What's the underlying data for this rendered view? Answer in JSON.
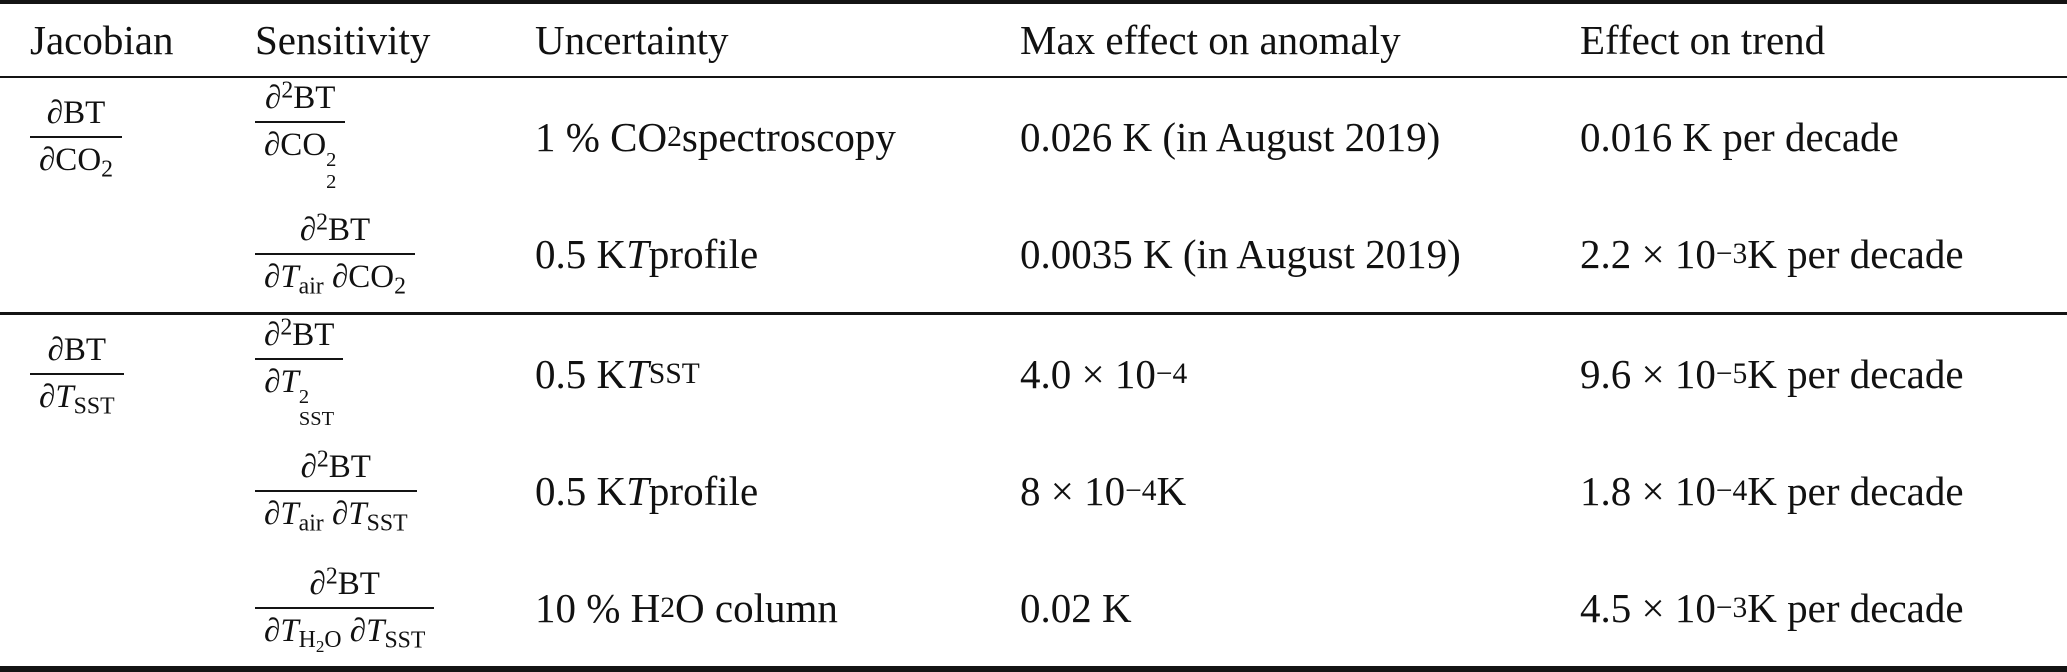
{
  "colors": {
    "background": "#ffffff",
    "text": "#111111",
    "rule": "#141414"
  },
  "table": {
    "headers": {
      "jacobian": "Jacobian",
      "sensitivity": "Sensitivity",
      "uncertainty": "Uncertainty",
      "max_effect": "Max effect on anomaly",
      "trend_effect": "Effect on trend"
    },
    "rows": [
      {
        "jacobian": {
          "num": "∂BT",
          "den": "∂CO<sub>2</sub>"
        },
        "sensitivity": {
          "num": "∂<sup>2</sup>BT",
          "den": "∂CO<span class='ss'><span>2</span><span>2</span></span>"
        },
        "uncertainty": "1 % CO<sub>2</sub> spectroscopy",
        "max_effect": "0.026 K (in August 2019)",
        "trend_effect": "0.016 K per decade"
      },
      {
        "jacobian": null,
        "sensitivity": {
          "num": "∂<sup>2</sup>BT",
          "den": "∂<i>T</i><sub>air</sub> ∂CO<sub>2</sub>"
        },
        "uncertainty": "0.5 K <i>T</i> profile",
        "max_effect": "0.0035 K (in August 2019)",
        "trend_effect": "2.2 × 10<sup>−3</sup> K per decade"
      },
      {
        "jacobian": {
          "num": "∂BT",
          "den": "∂<i>T</i><sub>SST</sub>"
        },
        "sensitivity": {
          "num": "∂<sup>2</sup>BT",
          "den": "∂<i>T</i><span class='ss'><span>2</span><span>SST</span></span>"
        },
        "uncertainty": "0.5 K <i>T</i><sub>SST</sub>",
        "max_effect": "4.0 × 10<sup>−4</sup>",
        "trend_effect": "9.6 × 10<sup>−5</sup> K per decade"
      },
      {
        "jacobian": null,
        "sensitivity": {
          "num": "∂<sup>2</sup>BT",
          "den": "∂<i>T</i><sub>air</sub> ∂<i>T</i><sub>SST</sub>"
        },
        "uncertainty": "0.5 K <i>T</i> profile",
        "max_effect": "8 × 10<sup>−4</sup> K",
        "trend_effect": "1.8 × 10<sup>−4</sup> K per decade"
      },
      {
        "jacobian": null,
        "sensitivity": {
          "num": "∂<sup>2</sup>BT",
          "den": "∂<i>T</i><sub>H<sub>2</sub>O</sub> ∂<i>T</i><sub>SST</sub>"
        },
        "uncertainty": "10 % H<sub>2</sub>O column",
        "max_effect": "0.02 K",
        "trend_effect": "4.5 × 10<sup>−3</sup> K per decade"
      }
    ]
  }
}
